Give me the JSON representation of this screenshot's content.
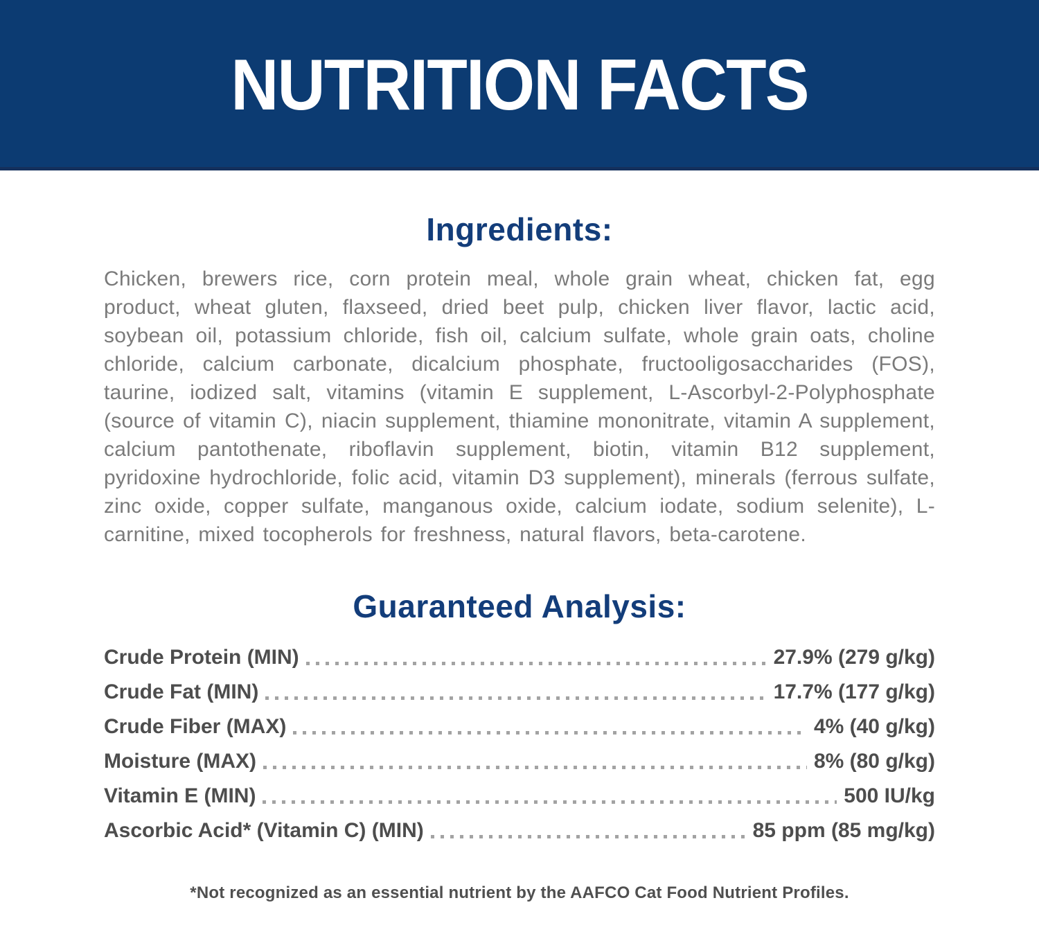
{
  "banner": {
    "title": "NUTRITION FACTS"
  },
  "ingredients": {
    "heading": "Ingredients:",
    "text": "Chicken, brewers rice, corn protein meal, whole grain wheat, chicken fat, egg product, wheat gluten, flaxseed, dried beet pulp, chicken liver flavor, lactic acid, soybean oil, potassium chloride, fish oil, calcium sulfate, whole grain oats, choline chloride, calcium carbonate, dicalcium phosphate, fructooligosaccharides (FOS), taurine, iodized salt, vitamins (vitamin E supplement, L-Ascorbyl-2-Polyphosphate (source of vitamin C), niacin supplement, thiamine mononitrate, vitamin A supplement, calcium pantothenate, riboflavin supplement, biotin, vitamin B12 supplement, pyridoxine hydrochloride, folic acid, vitamin D3 supplement), minerals (ferrous sulfate, zinc oxide, copper sulfate, manganous oxide, calcium iodate, sodium selenite), L-carnitine, mixed tocopherols for freshness, natural flavors, beta-carotene."
  },
  "guaranteed_analysis": {
    "heading": "Guaranteed Analysis:",
    "rows": [
      {
        "label": "Crude Protein (MIN)",
        "value": "27.9% (279 g/kg)"
      },
      {
        "label": "Crude Fat (MIN)",
        "value": "17.7% (177 g/kg)"
      },
      {
        "label": "Crude Fiber (MAX)",
        "value": "4% (40 g/kg)"
      },
      {
        "label": "Moisture (MAX)",
        "value": "8% (80 g/kg)"
      },
      {
        "label": "Vitamin E (MIN)",
        "value": "500 IU/kg"
      },
      {
        "label": "Ascorbic Acid* (Vitamin C) (MIN)",
        "value": "85 ppm (85 mg/kg)"
      }
    ]
  },
  "footnote": "*Not recognized as an essential nutrient by the AAFCO Cat Food Nutrient Profiles.",
  "colors": {
    "banner_bg": "#0c3b72",
    "banner_border": "#14305c",
    "heading_navy": "#133d7a",
    "body_gray": "#7a7a7a",
    "analysis_text": "#4d4d4d",
    "dot_leader": "#a3a3a3",
    "banner_text": "#ffffff"
  }
}
